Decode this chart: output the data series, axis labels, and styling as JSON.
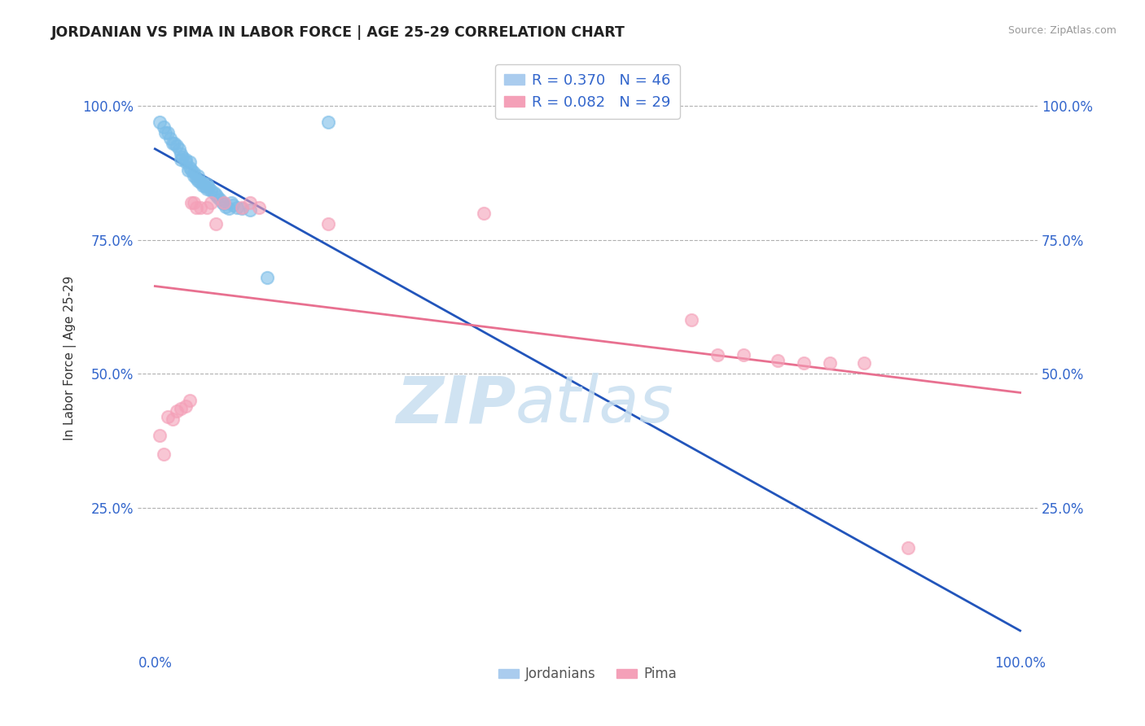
{
  "title": "JORDANIAN VS PIMA IN LABOR FORCE | AGE 25-29 CORRELATION CHART",
  "source_text": "Source: ZipAtlas.com",
  "ylabel": "In Labor Force | Age 25-29",
  "xlim": [
    -0.02,
    1.02
  ],
  "ylim": [
    -0.02,
    1.08
  ],
  "x_tick_positions": [
    0.0,
    1.0
  ],
  "x_tick_labels": [
    "0.0%",
    "100.0%"
  ],
  "y_tick_positions": [
    0.25,
    0.5,
    0.75,
    1.0
  ],
  "y_tick_labels": [
    "25.0%",
    "50.0%",
    "75.0%",
    "100.0%"
  ],
  "jordanian_color": "#7bbde8",
  "pima_color": "#f4a0b8",
  "trend_jordanian_color": "#2255bb",
  "trend_pima_color": "#e87090",
  "background_color": "#ffffff",
  "grid_color": "#b0b0b0",
  "watermark_zip": "ZIP",
  "watermark_atlas": "atlas",
  "watermark_color_zip": "#c8dff0",
  "watermark_color_atlas": "#c8dff0",
  "r_jordanian": 0.37,
  "n_jordanian": 46,
  "r_pima": 0.082,
  "n_pima": 29,
  "jordanian_x": [
    0.005,
    0.01,
    0.012,
    0.015,
    0.018,
    0.02,
    0.022,
    0.025,
    0.028,
    0.03,
    0.03,
    0.032,
    0.035,
    0.035,
    0.038,
    0.04,
    0.04,
    0.042,
    0.045,
    0.045,
    0.048,
    0.05,
    0.05,
    0.052,
    0.055,
    0.055,
    0.058,
    0.06,
    0.06,
    0.062,
    0.065,
    0.068,
    0.07,
    0.072,
    0.075,
    0.078,
    0.08,
    0.082,
    0.085,
    0.088,
    0.09,
    0.095,
    0.1,
    0.11,
    0.13,
    0.2
  ],
  "jordanian_y": [
    0.97,
    0.96,
    0.95,
    0.95,
    0.94,
    0.93,
    0.93,
    0.925,
    0.92,
    0.91,
    0.9,
    0.905,
    0.895,
    0.9,
    0.88,
    0.885,
    0.895,
    0.88,
    0.875,
    0.87,
    0.865,
    0.86,
    0.87,
    0.858,
    0.852,
    0.858,
    0.85,
    0.845,
    0.855,
    0.848,
    0.842,
    0.838,
    0.835,
    0.83,
    0.825,
    0.82,
    0.818,
    0.812,
    0.808,
    0.82,
    0.815,
    0.81,
    0.808,
    0.805,
    0.68,
    0.97
  ],
  "pima_x": [
    0.005,
    0.01,
    0.015,
    0.02,
    0.025,
    0.03,
    0.035,
    0.04,
    0.042,
    0.045,
    0.048,
    0.052,
    0.06,
    0.065,
    0.07,
    0.08,
    0.1,
    0.11,
    0.12,
    0.2,
    0.38,
    0.62,
    0.65,
    0.68,
    0.72,
    0.75,
    0.78,
    0.82,
    0.87
  ],
  "pima_y": [
    0.385,
    0.35,
    0.42,
    0.415,
    0.43,
    0.435,
    0.44,
    0.45,
    0.82,
    0.82,
    0.81,
    0.81,
    0.81,
    0.82,
    0.78,
    0.82,
    0.81,
    0.82,
    0.81,
    0.78,
    0.8,
    0.6,
    0.535,
    0.535,
    0.525,
    0.52,
    0.52,
    0.52,
    0.175
  ]
}
